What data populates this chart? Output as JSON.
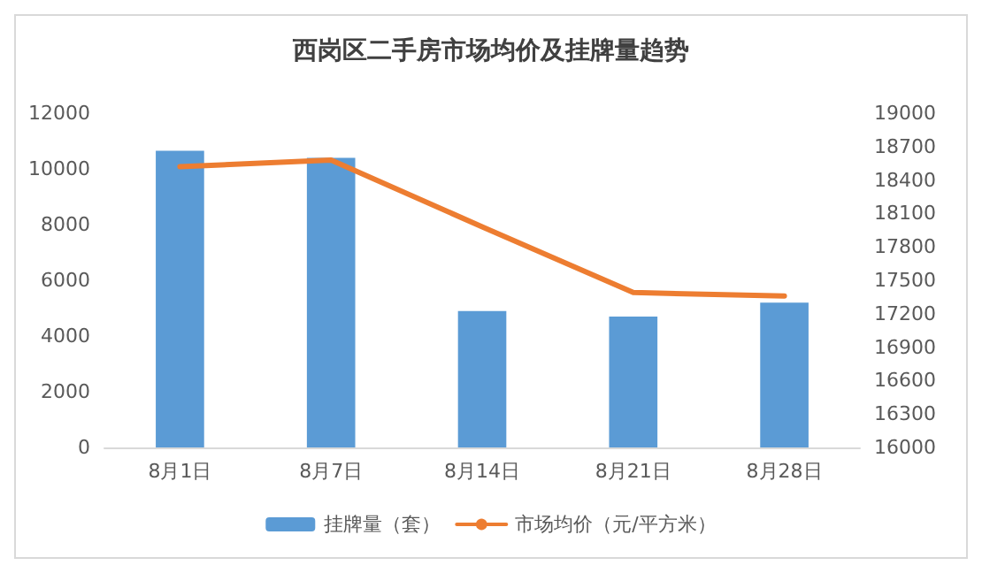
{
  "chart_data": {
    "type": "bar",
    "title": "西岗区二手房市场均价及挂牌量趋势",
    "categories": [
      "8月1日",
      "8月7日",
      "8月14日",
      "8月21日",
      "8月28日"
    ],
    "series": [
      {
        "name": "挂牌量（套）",
        "color": "#5b9bd5",
        "values": [
          10650,
          10400,
          4900,
          4700,
          5200
        ]
      },
      {
        "name": "市场均价（元/平方米）",
        "type": "line",
        "axis": "y2",
        "color": "#ed7d31",
        "values": [
          18520,
          18580,
          17980,
          17390,
          17360
        ]
      }
    ],
    "ylim": [
      0,
      12000
    ],
    "yticks": [
      0,
      2000,
      4000,
      6000,
      8000,
      10000,
      12000
    ],
    "y2lim": [
      16000,
      19000
    ],
    "y2ticks": [
      16000,
      16300,
      16600,
      16900,
      17200,
      17500,
      17800,
      18100,
      18400,
      18700,
      19000
    ],
    "grid": false,
    "legend": "bottom",
    "marker": "none"
  }
}
